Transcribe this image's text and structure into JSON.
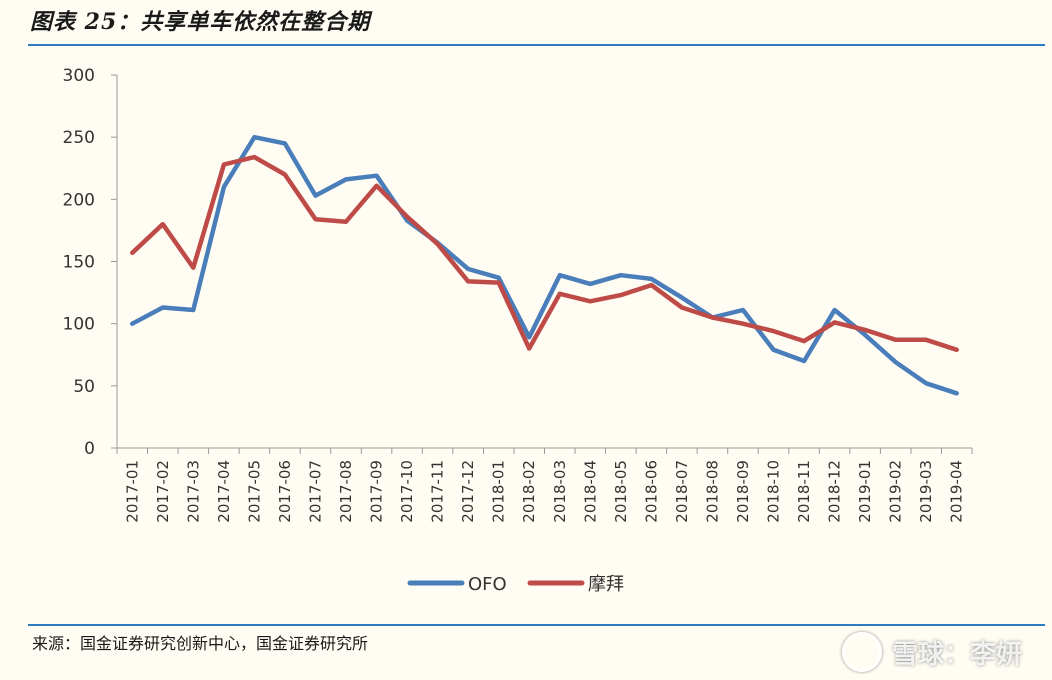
{
  "header": {
    "title": "图表 25：共享单车依然在整合期"
  },
  "footer": {
    "source": "来源：国金证券研究创新中心，国金证券研究所"
  },
  "watermark": {
    "text": "雪球：李妍"
  },
  "chart_data": {
    "type": "line",
    "categories": [
      "2017-01",
      "2017-02",
      "2017-03",
      "2017-04",
      "2017-05",
      "2017-06",
      "2017-07",
      "2017-08",
      "2017-09",
      "2017-10",
      "2017-11",
      "2017-12",
      "2018-01",
      "2018-02",
      "2018-03",
      "2018-04",
      "2018-05",
      "2018-06",
      "2018-07",
      "2018-08",
      "2018-09",
      "2018-10",
      "2018-11",
      "2018-12",
      "2019-01",
      "2019-02",
      "2019-03",
      "2019-04"
    ],
    "series": [
      {
        "name": "OFO",
        "color": "#4a7ebb",
        "values": [
          100,
          113,
          111,
          210,
          250,
          245,
          203,
          216,
          219,
          183,
          165,
          144,
          137,
          89,
          139,
          132,
          139,
          136,
          121,
          105,
          111,
          79,
          70,
          111,
          91,
          69,
          52,
          44
        ]
      },
      {
        "name": "摩拜",
        "color": "#be4b48",
        "values": [
          157,
          180,
          145,
          228,
          234,
          220,
          184,
          182,
          211,
          186,
          164,
          134,
          133,
          80,
          124,
          118,
          123,
          131,
          113,
          105,
          100,
          94,
          86,
          101,
          95,
          87,
          87,
          79
        ]
      }
    ],
    "yticks": [
      0,
      50,
      100,
      150,
      200,
      250,
      300
    ],
    "ylim": [
      0,
      300
    ],
    "legend_position": "bottom",
    "grid": false
  }
}
